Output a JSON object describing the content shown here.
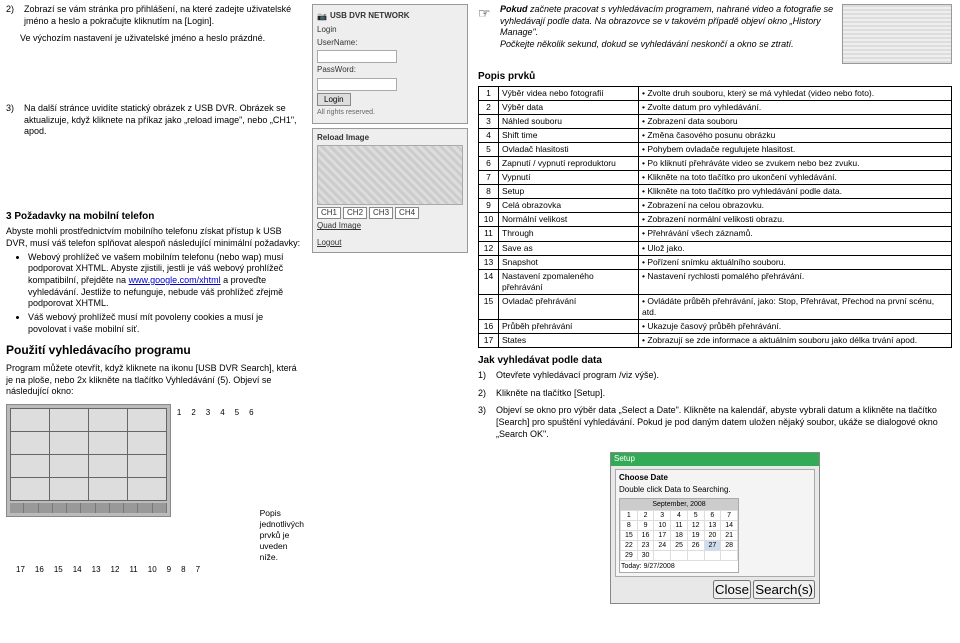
{
  "left": {
    "step2_num": "2)",
    "step2_text": "Zobrazí se vám stránka pro přihlášení, na které zadejte uživatelské jméno a heslo a pokračujte kliknutím na [Login].",
    "step2_sub": "Ve výchozím nastavení je uživatelské jméno a heslo prázdné.",
    "step3_num": "3)",
    "step3_text": "Na další stránce uvidíte statický obrázek z USB DVR. Obrázek se aktualizuje, když kliknete na příkaz jako „reload image\", nebo „CH1\", apod.",
    "h3_req": "3 Požadavky na mobilní telefon",
    "req_intro": "Abyste mohli prostřednictvím mobilního telefonu získat přístup k USB DVR, musí váš telefon splňovat alespoň následující minimální požadavky:",
    "req_li1a": "Webový prohlížeč ve vašem mobilním telefonu (nebo wap) musí podporovat XHTML. Abyste zjistili, jestli je váš webový prohlížeč kompatibilní, přejděte na ",
    "req_li1_link": "www.google.com/xhtml",
    "req_li1b": " a proveďte vyhledávání. Jestliže to nefunguje, nebude váš prohlížeč zřejmě podporovat XHTML.",
    "req_li2": "Váš webový prohlížeč musí mít povoleny cookies a musí je povolovat i vaše mobilní síť.",
    "h2_search": "Použití vyhledávacího programu",
    "search_p": "Program můžete otevřít, když kliknete na ikonu [USB DVR Search], která je na ploše, nebo 2x klikněte na tlačítko Vyhledávání (5). Objeví se následující okno:",
    "callout_v": [
      "1",
      "2",
      "3",
      "4",
      "5",
      "6"
    ],
    "callout_h": [
      "17",
      "16",
      "15",
      "14",
      "13",
      "12",
      "11",
      "10",
      "9",
      "8",
      "7"
    ],
    "caption_below": "Popis jednotlivých prvků je uveden níže."
  },
  "mid": {
    "login": {
      "title": "USB DVR NETWORK",
      "lbl_user": "Login",
      "lbl_un": "UserName:",
      "lbl_pw": "PassWord:",
      "btn": "Login",
      "rights": "All rights reserved."
    },
    "reload": {
      "title": "Reload Image",
      "ch_label": "CH1 CH2 CH3 CH4",
      "quad": "Quad Image",
      "logout": "Logout"
    }
  },
  "right": {
    "note1_bold": "Pokud",
    "note1": " začnete pracovat s vyhledávacím programem, nahrané video a fotografie se vyhledávají podle data. Na obrazovce se v takovém případě objeví okno „History Manage\".",
    "note2": "Počkejte několik sekund, dokud se vyhledávání neskončí a okno se ztratí.",
    "popis_h": "Popis prvků",
    "rows": [
      [
        "1",
        "Výběr videa nebo fotografií",
        "Zvolte druh souboru, který se má vyhledat (video nebo foto)."
      ],
      [
        "2",
        "Výběr data",
        "Zvolte datum pro vyhledávání."
      ],
      [
        "3",
        "Náhled souboru",
        "Zobrazení data souboru"
      ],
      [
        "4",
        "Shift time",
        "Změna časového posunu obrázku"
      ],
      [
        "5",
        "Ovladač hlasitosti",
        "Pohybem ovladače regulujete hlasitost."
      ],
      [
        "6",
        "Zapnutí / vypnutí reproduktoru",
        "Po kliknutí přehráváte video se zvukem nebo bez zvuku."
      ],
      [
        "7",
        "Vypnutí",
        "Klikněte na toto tlačítko pro ukončení vyhledávání."
      ],
      [
        "8",
        "Setup",
        "Klikněte na toto tlačítko pro vyhledávání podle data."
      ],
      [
        "9",
        "Celá obrazovka",
        "Zobrazení na celou obrazovku."
      ],
      [
        "10",
        "Normální velikost",
        "Zobrazení normální velikosti obrazu."
      ],
      [
        "11",
        "Through",
        "Přehrávání všech záznamů."
      ],
      [
        "12",
        "Save as",
        "Ulož jako."
      ],
      [
        "13",
        "Snapshot",
        "Pořízení snímku aktuálního souboru."
      ],
      [
        "14",
        "Nastavení zpomaleného přehrávání",
        "Nastavení rychlosti pomalého přehrávání."
      ],
      [
        "15",
        "Ovladač přehrávání",
        "Ovládáte průběh přehrávání, jako: Stop, Přehrávat, Přechod na první scénu, atd."
      ],
      [
        "16",
        "Průběh přehrávání",
        "Ukazuje časový průběh přehrávání."
      ],
      [
        "17",
        "States",
        "Zobrazují se zde informace a aktuálním souboru jako délka trvání apod."
      ]
    ],
    "hsearch": "Jak vyhledávat podle data",
    "s1_num": "1)",
    "s1": "Otevřete vyhledávací program /viz výše).",
    "s2_num": "2)",
    "s2": "Klikněte na tlačítko [Setup].",
    "s3_num": "3)",
    "s3": "Objeví se okno pro výběr data „Select a Date\". Klikněte na kalendář, abyste vybrali datum a klikněte na tlačítko [Search] pro spuštění vyhledávání. Pokud je pod daným datem uložen nějaký soubor, ukáže se dialogové okno „Search OK\".",
    "setup": {
      "title": "Setup",
      "panel": "Choose Date",
      "hint": "Double click Data to Searching.",
      "month": "September, 2008",
      "today": "Today: 9/27/2008",
      "btn_close": "Close",
      "btn_search": "Search(s)"
    }
  }
}
